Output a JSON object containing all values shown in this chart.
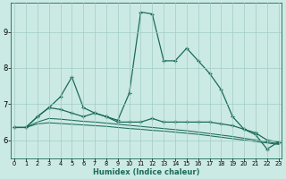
{
  "xlabel": "Humidex (Indice chaleur)",
  "x": [
    0,
    1,
    2,
    3,
    4,
    5,
    6,
    7,
    8,
    9,
    10,
    11,
    12,
    13,
    14,
    15,
    16,
    17,
    18,
    19,
    20,
    21,
    22,
    23
  ],
  "line1": [
    6.35,
    6.35,
    6.65,
    6.9,
    7.2,
    7.75,
    6.9,
    6.75,
    6.65,
    6.55,
    7.3,
    9.55,
    9.5,
    8.2,
    8.2,
    8.55,
    8.2,
    7.85,
    7.4,
    6.65,
    6.3,
    6.15,
    5.75,
    5.95
  ],
  "line2": [
    6.35,
    6.35,
    6.65,
    6.9,
    6.85,
    6.75,
    6.65,
    6.75,
    6.65,
    6.5,
    6.5,
    6.5,
    6.6,
    6.5,
    6.5,
    6.5,
    6.5,
    6.5,
    6.45,
    6.4,
    6.3,
    6.2,
    6.0,
    5.95
  ],
  "line3": [
    6.35,
    6.35,
    6.5,
    6.6,
    6.58,
    6.55,
    6.52,
    6.5,
    6.47,
    6.44,
    6.41,
    6.38,
    6.35,
    6.32,
    6.29,
    6.26,
    6.22,
    6.18,
    6.14,
    6.1,
    6.05,
    6.0,
    5.95,
    5.9
  ],
  "line4": [
    6.35,
    6.35,
    6.45,
    6.48,
    6.46,
    6.44,
    6.42,
    6.4,
    6.38,
    6.35,
    6.32,
    6.3,
    6.27,
    6.25,
    6.22,
    6.19,
    6.16,
    6.12,
    6.08,
    6.04,
    6.0,
    5.96,
    5.92,
    5.88
  ],
  "line_color": "#1a6b5a",
  "bg_color": "#cceae4",
  "grid_color": "#a0ccc5",
  "ylim": [
    5.5,
    9.8
  ],
  "yticks": [
    6,
    7,
    8,
    9
  ],
  "xlim": [
    -0.3,
    23.3
  ]
}
